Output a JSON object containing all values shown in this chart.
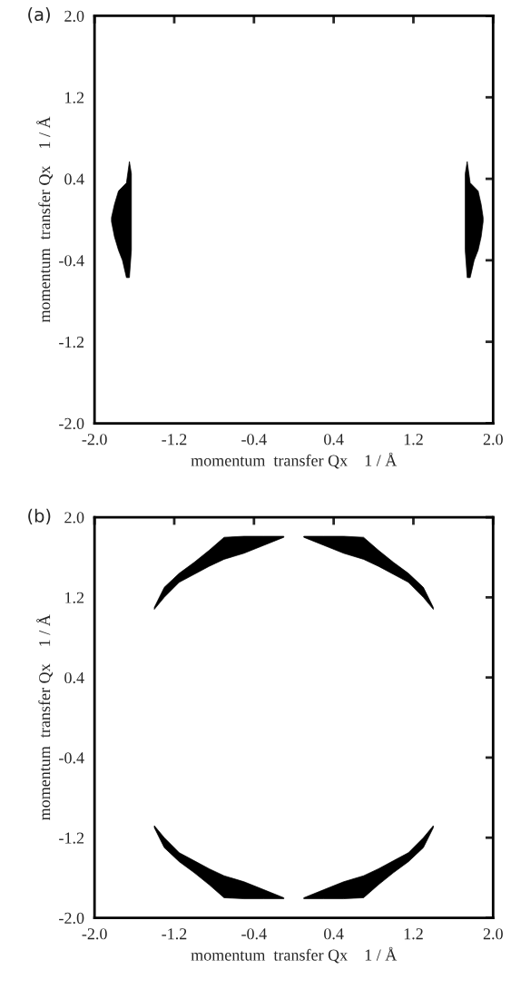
{
  "chart_data": [
    {
      "type": "area",
      "title": "(a)",
      "xlabel": "momentum  transfer Qx    1 / Å",
      "ylabel": "momentum  transfer Qx    1 / Å",
      "xlim": [
        -2.0,
        2.0
      ],
      "ylim": [
        -2.0,
        2.0
      ],
      "xticks": [
        {
          "value": -2.0,
          "label": "-2.0"
        },
        {
          "value": -1.2,
          "label": "-1.2"
        },
        {
          "value": -0.4,
          "label": "-0.4"
        },
        {
          "value": 0.4,
          "label": "0.4"
        },
        {
          "value": 1.2,
          "label": "1.2"
        },
        {
          "value": 2.0,
          "label": "2.0"
        }
      ],
      "yticks": [
        {
          "value": -2.0,
          "label": "-2.0"
        },
        {
          "value": -1.2,
          "label": "-1.2"
        },
        {
          "value": -0.4,
          "label": "-0.4"
        },
        {
          "value": 0.4,
          "label": "0.4"
        },
        {
          "value": 1.2,
          "label": "1.2"
        },
        {
          "value": 2.0,
          "label": "2.0"
        }
      ],
      "series": [
        {
          "color": "#000000",
          "x": [
            -1.83,
            -1.8,
            -1.76,
            -1.72,
            -1.68,
            -1.65,
            -1.63,
            -1.63,
            -1.65,
            -1.68,
            -1.72,
            -1.76,
            -1.8,
            -1.83
          ],
          "values": [
            0.02,
            0.15,
            0.28,
            0.32,
            0.36,
            0.57,
            0.45,
            -0.3,
            -0.57,
            -0.57,
            -0.4,
            -0.3,
            -0.17,
            -0.02
          ]
        },
        {
          "color": "#000000",
          "x": [
            1.72,
            1.74,
            1.77,
            1.81,
            1.85,
            1.88,
            1.9,
            1.9,
            1.88,
            1.85,
            1.81,
            1.77,
            1.74,
            1.72
          ],
          "values": [
            0.45,
            0.57,
            0.36,
            0.32,
            0.28,
            0.15,
            0.02,
            -0.02,
            -0.17,
            -0.3,
            -0.4,
            -0.57,
            -0.57,
            -0.3
          ]
        }
      ]
    },
    {
      "type": "area",
      "title": "(b)",
      "xlabel": "momentum  transfer Qx    1 / Å",
      "ylabel": "momentum  transfer Qx    1 / Å",
      "xlim": [
        -2.0,
        2.0
      ],
      "ylim": [
        -2.0,
        2.0
      ],
      "xticks": [
        {
          "value": -2.0,
          "label": "-2.0"
        },
        {
          "value": -1.2,
          "label": "-1.2"
        },
        {
          "value": -0.4,
          "label": "-0.4"
        },
        {
          "value": 0.4,
          "label": "0.4"
        },
        {
          "value": 1.2,
          "label": "1.2"
        },
        {
          "value": 2.0,
          "label": "2.0"
        }
      ],
      "yticks": [
        {
          "value": -2.0,
          "label": "-2.0"
        },
        {
          "value": -1.2,
          "label": "-1.2"
        },
        {
          "value": -0.4,
          "label": "-0.4"
        },
        {
          "value": 0.4,
          "label": "0.4"
        },
        {
          "value": 1.2,
          "label": "1.2"
        },
        {
          "value": 2.0,
          "label": "2.0"
        }
      ],
      "series": [
        {
          "color": "#000000",
          "x": [
            -1.4,
            -1.3,
            -1.15,
            -1.0,
            -0.85,
            -0.7,
            -0.5,
            -0.3,
            -0.1,
            -0.1,
            -0.3,
            -0.5,
            -0.7,
            -0.85,
            -1.0,
            -1.15,
            -1.3,
            -1.4
          ],
          "values": [
            1.1,
            1.3,
            1.44,
            1.55,
            1.67,
            1.8,
            1.81,
            1.81,
            1.81,
            1.8,
            1.72,
            1.64,
            1.58,
            1.51,
            1.43,
            1.35,
            1.2,
            1.08
          ]
        },
        {
          "color": "#000000",
          "x": [
            0.1,
            0.3,
            0.5,
            0.7,
            0.85,
            1.0,
            1.15,
            1.3,
            1.4,
            1.4,
            1.3,
            1.15,
            1.0,
            0.85,
            0.7,
            0.5,
            0.3,
            0.1
          ],
          "values": [
            1.81,
            1.81,
            1.81,
            1.8,
            1.67,
            1.55,
            1.44,
            1.3,
            1.1,
            1.08,
            1.2,
            1.35,
            1.43,
            1.51,
            1.58,
            1.64,
            1.72,
            1.8
          ]
        },
        {
          "color": "#000000",
          "x": [
            -1.4,
            -1.3,
            -1.15,
            -1.0,
            -0.85,
            -0.7,
            -0.5,
            -0.3,
            -0.1,
            -0.1,
            -0.3,
            -0.5,
            -0.7,
            -0.85,
            -1.0,
            -1.15,
            -1.3,
            -1.4
          ],
          "values": [
            -1.1,
            -1.3,
            -1.44,
            -1.55,
            -1.67,
            -1.8,
            -1.81,
            -1.81,
            -1.81,
            -1.8,
            -1.72,
            -1.64,
            -1.58,
            -1.51,
            -1.43,
            -1.35,
            -1.2,
            -1.08
          ]
        },
        {
          "color": "#000000",
          "x": [
            0.1,
            0.3,
            0.5,
            0.7,
            0.85,
            1.0,
            1.15,
            1.3,
            1.4,
            1.4,
            1.3,
            1.15,
            1.0,
            0.85,
            0.7,
            0.5,
            0.3,
            0.1
          ],
          "values": [
            -1.81,
            -1.81,
            -1.81,
            -1.8,
            -1.67,
            -1.55,
            -1.44,
            -1.3,
            -1.1,
            -1.08,
            -1.2,
            -1.35,
            -1.43,
            -1.51,
            -1.58,
            -1.64,
            -1.72,
            -1.8
          ]
        }
      ]
    }
  ]
}
